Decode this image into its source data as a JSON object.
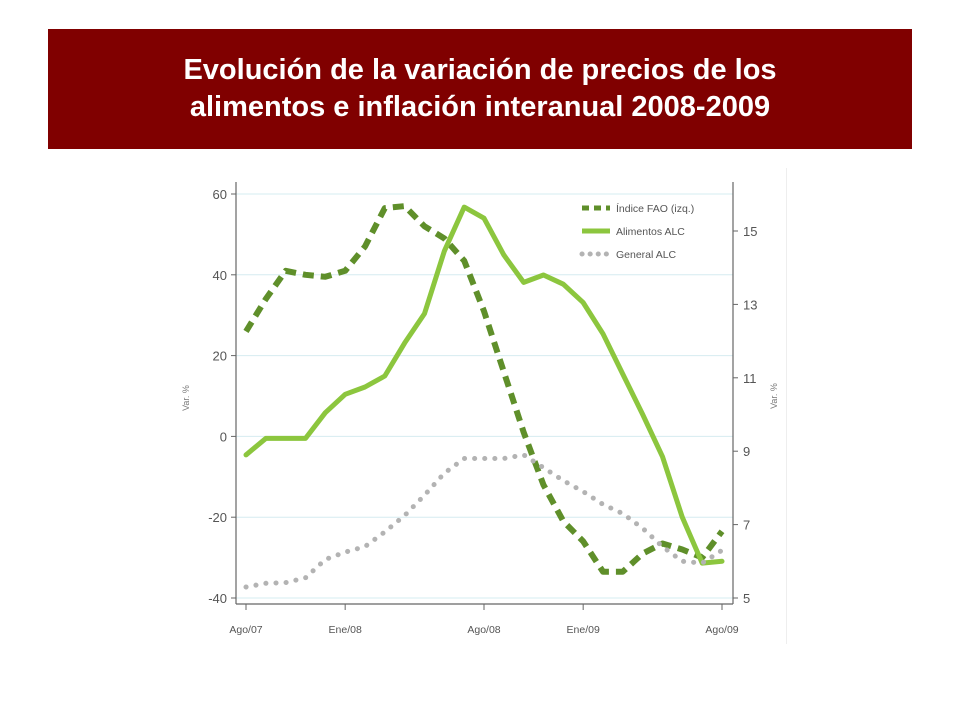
{
  "slide": {
    "title_line1": "Evolución de la variación de precios de los",
    "title_line2": "alimentos e inflación interanual 2008-2009"
  },
  "chart_data": {
    "type": "line",
    "x_tick_labels": [
      "Ago/07",
      "Ene/08",
      "Ago/08",
      "Ene/09",
      "Ago/09"
    ],
    "x_tick_index": [
      0,
      5,
      12,
      17,
      24
    ],
    "y_left": {
      "label": "Var. %",
      "ticks": [
        60,
        40,
        20,
        0,
        -20,
        -40
      ],
      "range": [
        -40,
        60
      ]
    },
    "y_right": {
      "label": "Var. %",
      "ticks": [
        15,
        13,
        11,
        9,
        7,
        5
      ],
      "range": [
        5,
        16.25
      ]
    },
    "grid": true,
    "legend_position": "top-right",
    "series": [
      {
        "name": "Índice FAO (izq.)",
        "axis": "left",
        "style": "dashed",
        "color": "#5f8f2a",
        "values": [
          26,
          34,
          41,
          40,
          39.5,
          41,
          47,
          56.5,
          57,
          52,
          49,
          43.5,
          31,
          16,
          1,
          -12,
          -21,
          -26,
          -33.5,
          -33.5,
          -29,
          -26.5,
          -28,
          -30,
          -23.5
        ]
      },
      {
        "name": "Alimentos ALC",
        "axis": "right",
        "style": "solid",
        "color": "#8cc63e",
        "values": [
          8.9,
          9.35,
          9.35,
          9.35,
          10.05,
          10.55,
          10.75,
          11.05,
          11.95,
          12.75,
          14.45,
          15.65,
          15.35,
          14.35,
          13.6,
          13.8,
          13.55,
          13.05,
          12.2,
          11.1,
          10.0,
          8.85,
          7.2,
          5.95,
          6.0
        ]
      },
      {
        "name": "General ALC",
        "axis": "right",
        "style": "dotted",
        "color": "#b3b3b3",
        "values": [
          5.3,
          5.4,
          5.42,
          5.55,
          6.05,
          6.25,
          6.4,
          6.8,
          7.25,
          7.8,
          8.4,
          8.8,
          8.8,
          8.8,
          8.9,
          8.55,
          8.2,
          7.9,
          7.55,
          7.3,
          6.9,
          6.4,
          6.0,
          5.95,
          6.3
        ]
      }
    ]
  }
}
